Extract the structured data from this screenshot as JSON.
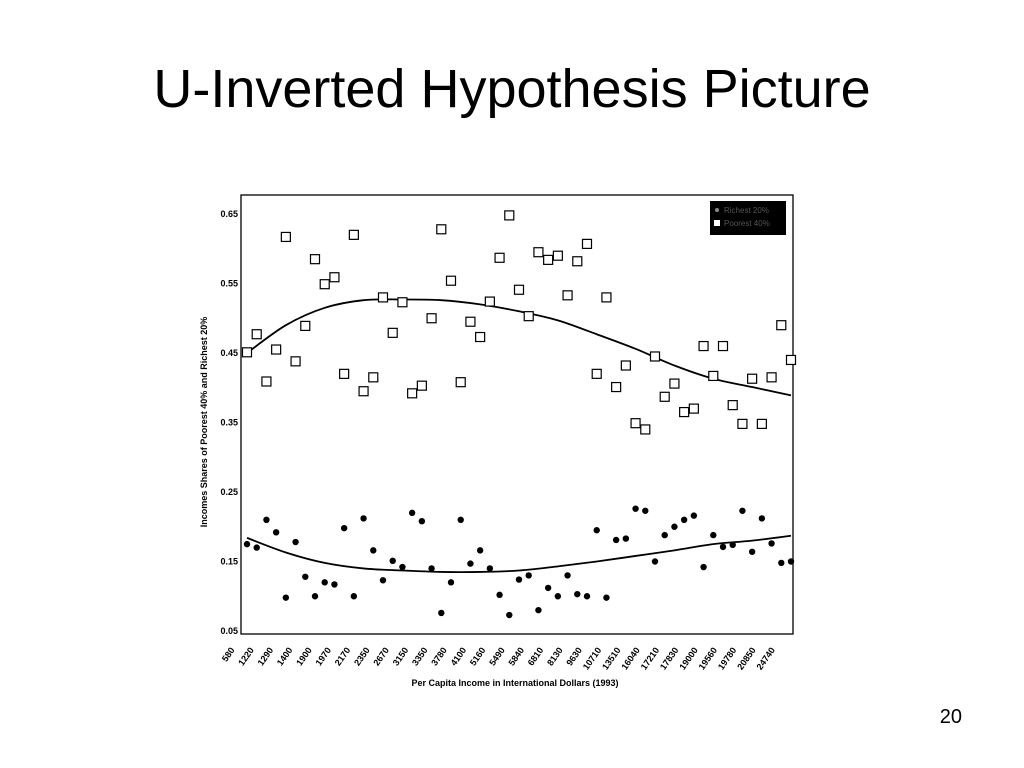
{
  "slide": {
    "title": "U-Inverted Hypothesis Picture",
    "number": "20"
  },
  "chart_data": {
    "type": "scatter",
    "xlabel": "Per Capita Income in International Dollars (1993)",
    "ylabel": "Incomes Shares of Poorest 40% and Richest 20%",
    "y_ticks": [
      "0.65",
      "0.55",
      "0.45",
      "0.35",
      "0.25",
      "0.15",
      "0.05"
    ],
    "ylim": [
      0.05,
      0.65
    ],
    "x_categories": [
      "580",
      "1220",
      "1290",
      "1400",
      "1900",
      "1970",
      "2170",
      "2350",
      "2670",
      "3150",
      "3350",
      "3780",
      "4100",
      "5160",
      "5490",
      "5840",
      "6810",
      "8130",
      "9630",
      "10710",
      "13510",
      "16040",
      "17210",
      "17830",
      "19000",
      "19560",
      "19780",
      "20850",
      "24740"
    ],
    "legend": {
      "placement": "top-right",
      "background": "#000000",
      "labels": [
        "Richest 20%",
        "Poorest 40%"
      ]
    },
    "colors": {
      "series": "#000000",
      "background": "#ffffff"
    },
    "series": [
      {
        "marker": "open-square",
        "points": [
          [
            0,
            0.451
          ],
          [
            0.5,
            0.477
          ],
          [
            1,
            0.409
          ],
          [
            1.5,
            0.455
          ],
          [
            2,
            0.617
          ],
          [
            2.5,
            0.438
          ],
          [
            3,
            0.489
          ],
          [
            3.5,
            0.585
          ],
          [
            4,
            0.549
          ],
          [
            4.5,
            0.559
          ],
          [
            5,
            0.42
          ],
          [
            5.5,
            0.62
          ],
          [
            6,
            0.395
          ],
          [
            6.5,
            0.415
          ],
          [
            7,
            0.53
          ],
          [
            7.5,
            0.479
          ],
          [
            8,
            0.523
          ],
          [
            8.5,
            0.392
          ],
          [
            9,
            0.403
          ],
          [
            9.5,
            0.5
          ],
          [
            10,
            0.628
          ],
          [
            10.5,
            0.554
          ],
          [
            11,
            0.408
          ],
          [
            11.5,
            0.495
          ],
          [
            12,
            0.473
          ],
          [
            12.5,
            0.524
          ],
          [
            13,
            0.587
          ],
          [
            13.5,
            0.648
          ],
          [
            14,
            0.541
          ],
          [
            14.5,
            0.503
          ],
          [
            15,
            0.595
          ],
          [
            15.5,
            0.584
          ],
          [
            16,
            0.59
          ],
          [
            16.5,
            0.533
          ],
          [
            17,
            0.582
          ],
          [
            17.5,
            0.607
          ],
          [
            18,
            0.42
          ],
          [
            18.5,
            0.53
          ],
          [
            19,
            0.401
          ],
          [
            19.5,
            0.432
          ],
          [
            20,
            0.349
          ],
          [
            20.5,
            0.34
          ],
          [
            21,
            0.445
          ],
          [
            21.5,
            0.387
          ],
          [
            22,
            0.406
          ],
          [
            22.5,
            0.365
          ],
          [
            23,
            0.37
          ],
          [
            23.5,
            0.46
          ],
          [
            24,
            0.417
          ],
          [
            24.5,
            0.46
          ],
          [
            25,
            0.375
          ],
          [
            25.5,
            0.348
          ],
          [
            26,
            0.413
          ],
          [
            26.5,
            0.348
          ],
          [
            27,
            0.415
          ],
          [
            27.5,
            0.49
          ],
          [
            28,
            0.44
          ]
        ],
        "trend": [
          [
            0,
            0.45
          ],
          [
            2,
            0.49
          ],
          [
            4,
            0.515
          ],
          [
            6,
            0.526
          ],
          [
            8,
            0.527
          ],
          [
            10,
            0.526
          ],
          [
            12,
            0.52
          ],
          [
            14,
            0.51
          ],
          [
            16,
            0.497
          ],
          [
            18,
            0.477
          ],
          [
            20,
            0.456
          ],
          [
            22,
            0.432
          ],
          [
            24,
            0.413
          ],
          [
            26,
            0.401
          ],
          [
            28,
            0.389
          ]
        ]
      },
      {
        "marker": "filled-circle",
        "points": [
          [
            0,
            0.175
          ],
          [
            0.5,
            0.17
          ],
          [
            1,
            0.21
          ],
          [
            1.5,
            0.192
          ],
          [
            2,
            0.098
          ],
          [
            2.5,
            0.178
          ],
          [
            3,
            0.128
          ],
          [
            3.5,
            0.1
          ],
          [
            4,
            0.12
          ],
          [
            4.5,
            0.117
          ],
          [
            5,
            0.198
          ],
          [
            5.5,
            0.1
          ],
          [
            6,
            0.212
          ],
          [
            6.5,
            0.166
          ],
          [
            7,
            0.123
          ],
          [
            7.5,
            0.151
          ],
          [
            8,
            0.142
          ],
          [
            8.5,
            0.22
          ],
          [
            9,
            0.208
          ],
          [
            9.5,
            0.14
          ],
          [
            10,
            0.076
          ],
          [
            10.5,
            0.12
          ],
          [
            11,
            0.21
          ],
          [
            11.5,
            0.147
          ],
          [
            12,
            0.166
          ],
          [
            12.5,
            0.14
          ],
          [
            13,
            0.102
          ],
          [
            13.5,
            0.073
          ],
          [
            14,
            0.124
          ],
          [
            14.5,
            0.13
          ],
          [
            15,
            0.08
          ],
          [
            15.5,
            0.112
          ],
          [
            16,
            0.1
          ],
          [
            16.5,
            0.13
          ],
          [
            17,
            0.103
          ],
          [
            17.5,
            0.1
          ],
          [
            18,
            0.195
          ],
          [
            18.5,
            0.098
          ],
          [
            19,
            0.181
          ],
          [
            19.5,
            0.183
          ],
          [
            20,
            0.226
          ],
          [
            20.5,
            0.223
          ],
          [
            21,
            0.15
          ],
          [
            21.5,
            0.188
          ],
          [
            22,
            0.2
          ],
          [
            22.5,
            0.21
          ],
          [
            23,
            0.216
          ],
          [
            23.5,
            0.142
          ],
          [
            24,
            0.188
          ],
          [
            24.5,
            0.171
          ],
          [
            25,
            0.174
          ],
          [
            25.5,
            0.223
          ],
          [
            26,
            0.164
          ],
          [
            26.5,
            0.212
          ],
          [
            27,
            0.176
          ],
          [
            27.5,
            0.148
          ],
          [
            28,
            0.15
          ]
        ],
        "trend": [
          [
            0,
            0.184
          ],
          [
            2,
            0.163
          ],
          [
            4,
            0.148
          ],
          [
            6,
            0.14
          ],
          [
            8,
            0.137
          ],
          [
            10,
            0.135
          ],
          [
            12,
            0.135
          ],
          [
            14,
            0.137
          ],
          [
            16,
            0.143
          ],
          [
            18,
            0.15
          ],
          [
            20,
            0.158
          ],
          [
            22,
            0.166
          ],
          [
            24,
            0.175
          ],
          [
            26,
            0.18
          ],
          [
            28,
            0.187
          ]
        ]
      }
    ]
  }
}
